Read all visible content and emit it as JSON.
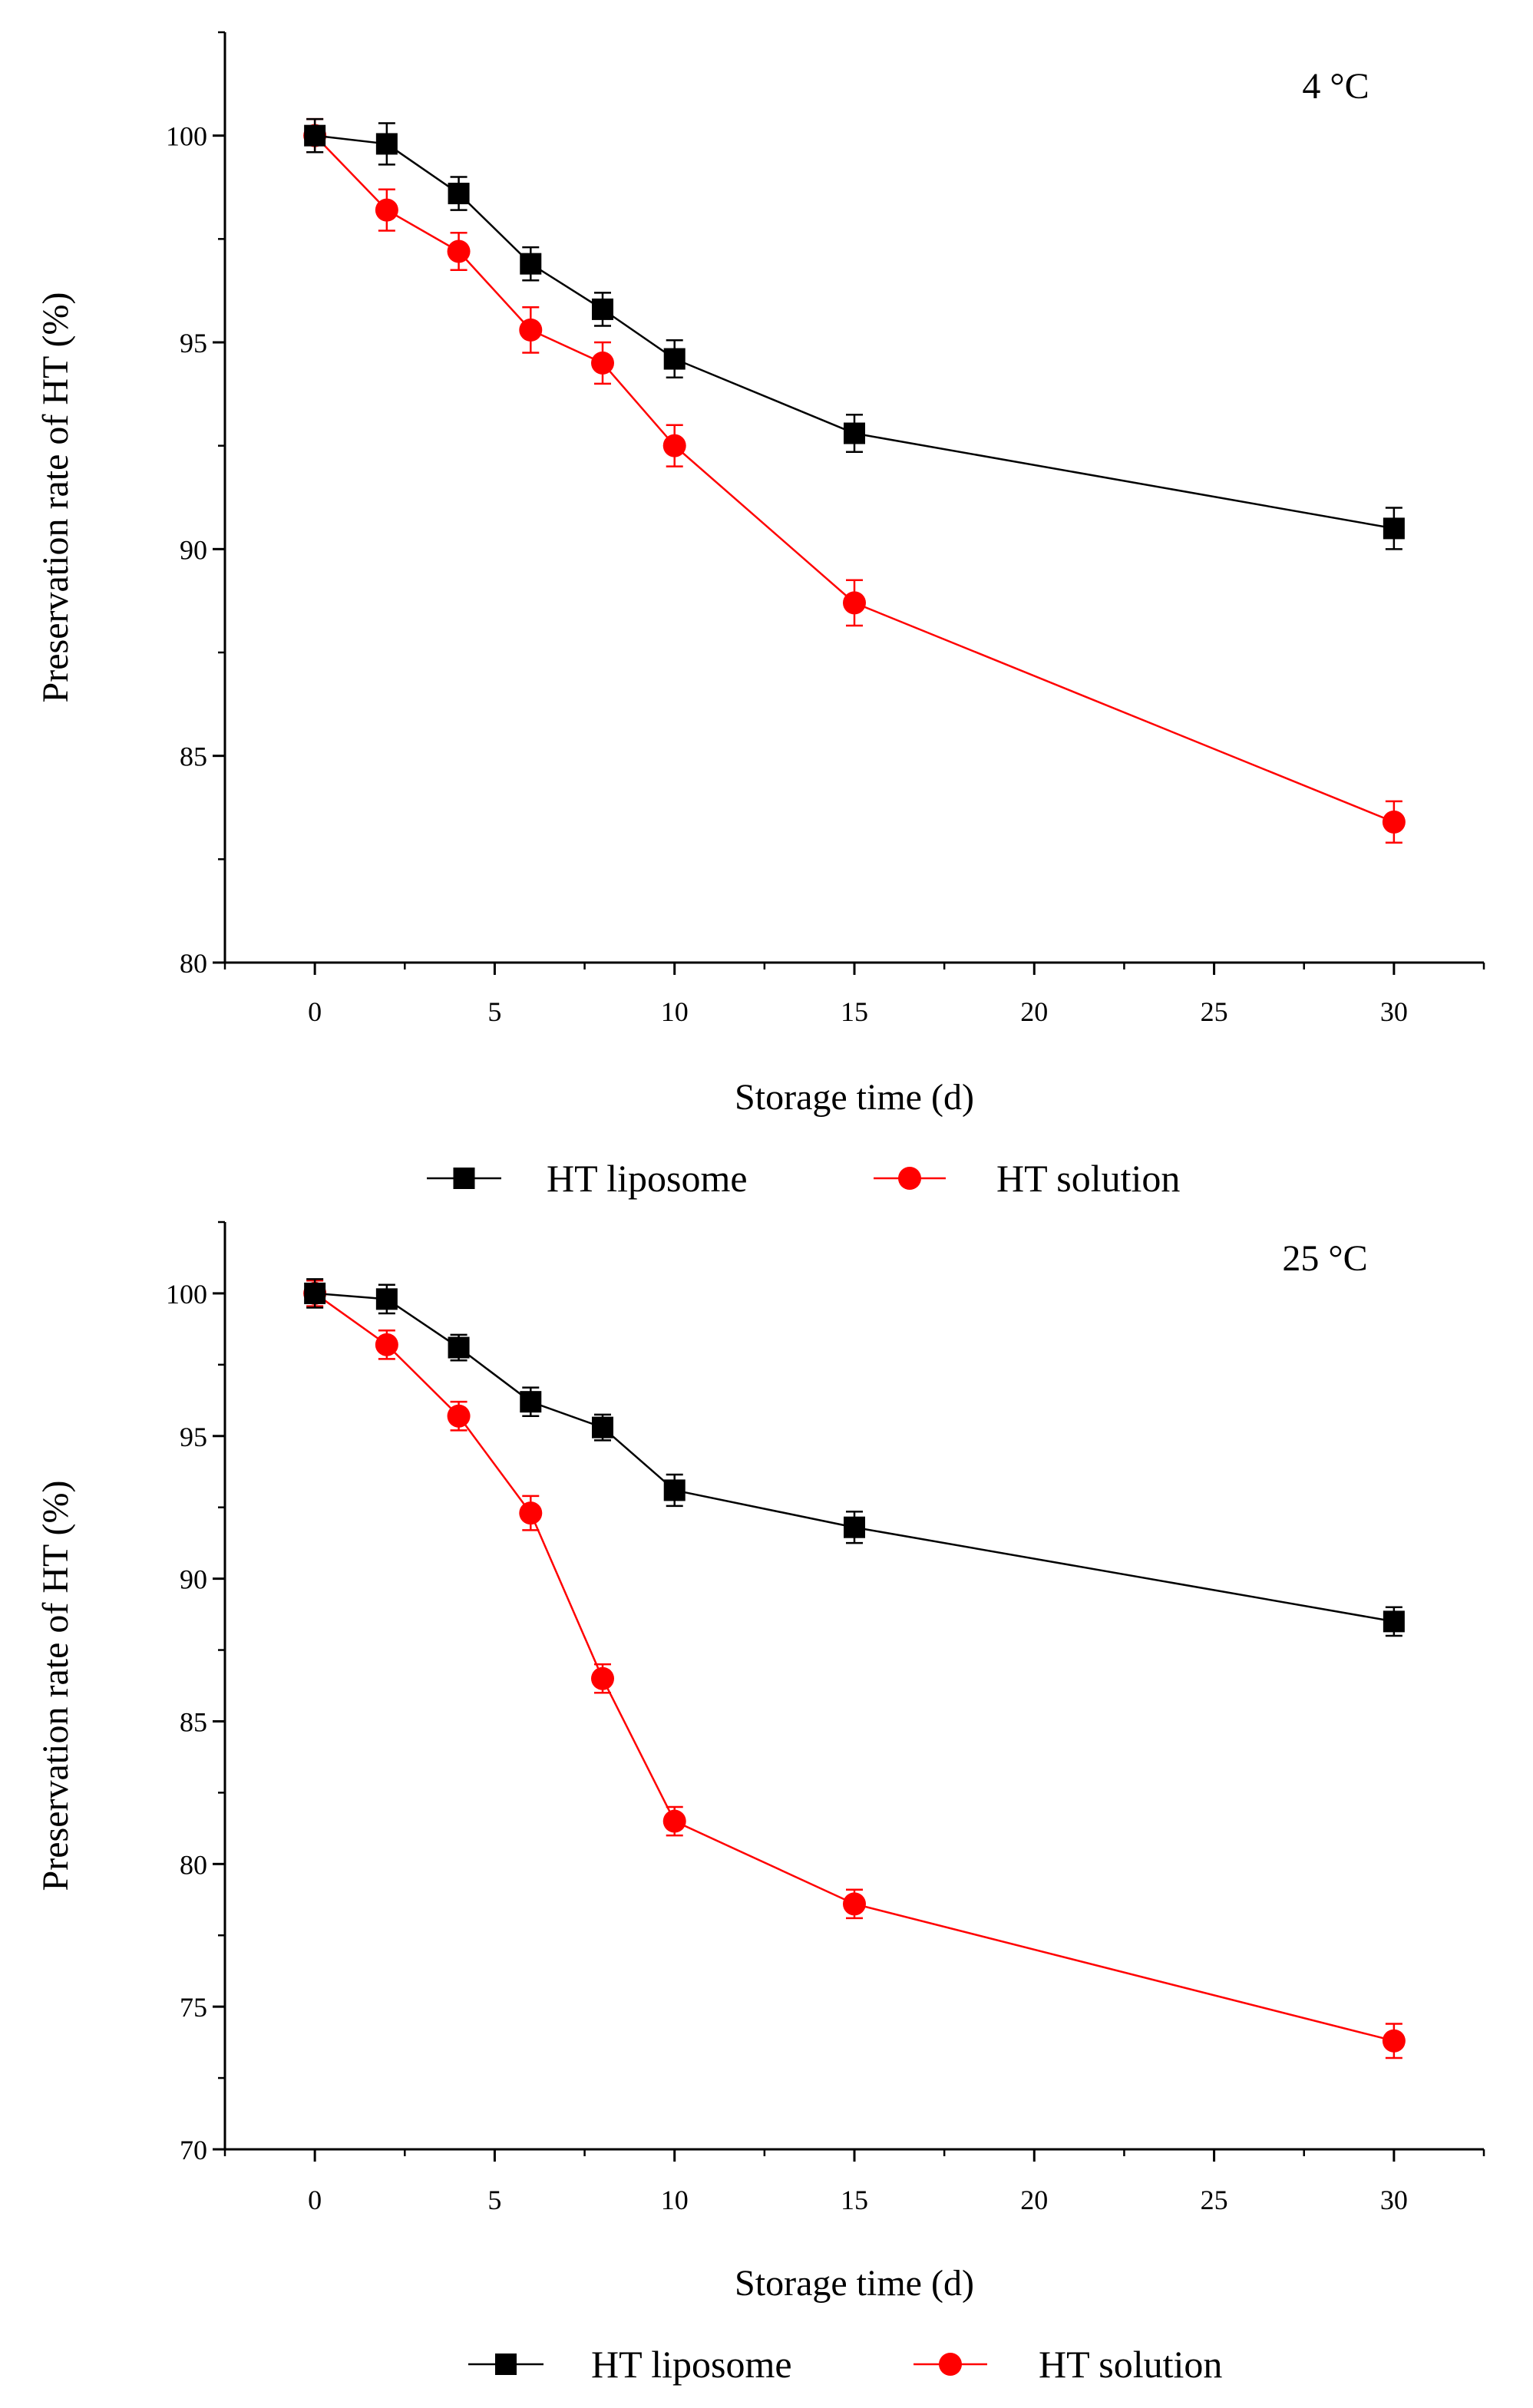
{
  "chart_data": [
    {
      "type": "line",
      "annotation": "4 °C",
      "xlabel": "Storage time (d)",
      "ylabel": "Preservation rate of HT (%)",
      "xlim": [
        -2.5,
        32.5
      ],
      "ylim": [
        80,
        102.5
      ],
      "xticks": [
        "0",
        "5",
        "10",
        "15",
        "20",
        "25",
        "30"
      ],
      "yticks": [
        "80",
        "85",
        "90",
        "95",
        "100"
      ],
      "legend_position": "bottom-center",
      "series": [
        {
          "name": "HT liposome",
          "color": "#000000",
          "marker": "square",
          "x": [
            0,
            2,
            4,
            6,
            8,
            10,
            15,
            30
          ],
          "y": [
            100.0,
            99.8,
            98.6,
            96.9,
            95.8,
            94.6,
            92.8,
            90.5
          ],
          "err": [
            0.4,
            0.5,
            0.4,
            0.4,
            0.4,
            0.45,
            0.45,
            0.5
          ]
        },
        {
          "name": "HT solution",
          "color": "#ff0000",
          "marker": "circle",
          "x": [
            0,
            2,
            4,
            6,
            8,
            10,
            15,
            30
          ],
          "y": [
            100.0,
            98.2,
            97.2,
            95.3,
            94.5,
            92.5,
            88.7,
            83.4
          ],
          "err": [
            0.4,
            0.5,
            0.45,
            0.55,
            0.5,
            0.5,
            0.55,
            0.5
          ]
        }
      ]
    },
    {
      "type": "line",
      "annotation": "25 °C",
      "xlabel": "Storage time (d)",
      "ylabel": "Preservation rate of HT (%)",
      "xlim": [
        -2.5,
        32.5
      ],
      "ylim": [
        70,
        102.5
      ],
      "xticks": [
        "0",
        "5",
        "10",
        "15",
        "20",
        "25",
        "30"
      ],
      "yticks": [
        "70",
        "75",
        "80",
        "85",
        "90",
        "95",
        "100"
      ],
      "legend_position": "bottom-center",
      "series": [
        {
          "name": "HT liposome",
          "color": "#000000",
          "marker": "square",
          "x": [
            0,
            2,
            4,
            6,
            8,
            10,
            15,
            30
          ],
          "y": [
            100.0,
            99.8,
            98.1,
            96.2,
            95.3,
            93.1,
            91.8,
            88.5
          ],
          "err": [
            0.5,
            0.5,
            0.45,
            0.5,
            0.45,
            0.55,
            0.55,
            0.5
          ]
        },
        {
          "name": "HT solution",
          "color": "#ff0000",
          "marker": "circle",
          "x": [
            0,
            2,
            4,
            6,
            8,
            10,
            15,
            30
          ],
          "y": [
            100.0,
            98.2,
            95.7,
            92.3,
            86.5,
            81.5,
            78.6,
            73.8
          ],
          "err": [
            0.45,
            0.5,
            0.5,
            0.6,
            0.5,
            0.5,
            0.5,
            0.6
          ]
        }
      ]
    }
  ]
}
